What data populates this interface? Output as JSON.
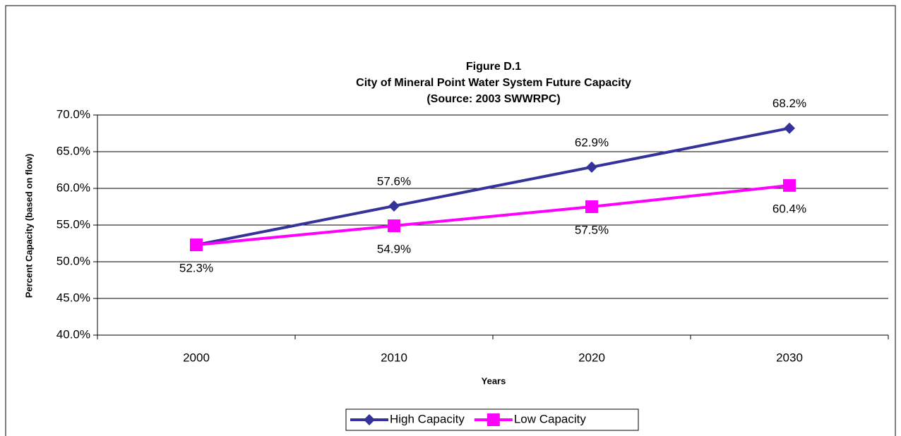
{
  "chart_data": {
    "type": "line",
    "title": "Figure D.1",
    "subtitle": "City of Mineral Point Water System Future Capacity",
    "source": "(Source:  2003 SWWRPC)",
    "y_label": "Percent Capacity (based on flow)",
    "x_label": "Years",
    "categories": [
      "2000",
      "2010",
      "2020",
      "2030"
    ],
    "series": [
      {
        "name": "High Capacity",
        "color": "#333399",
        "marker": "diamond",
        "values": [
          52.3,
          57.6,
          62.9,
          68.2
        ],
        "value_labels": [
          null,
          "57.6%",
          "62.9%",
          "68.2%"
        ]
      },
      {
        "name": "Low Capacity",
        "color": "#ff00ff",
        "marker": "square",
        "values": [
          52.3,
          54.9,
          57.5,
          60.4
        ],
        "value_labels": [
          "52.3%",
          "54.9%",
          "57.5%",
          "60.4%"
        ]
      }
    ],
    "ylim": [
      40,
      70
    ],
    "yticks": [
      {
        "value": 40,
        "label": "40.0%"
      },
      {
        "value": 45,
        "label": "45.0%"
      },
      {
        "value": 50,
        "label": "50.0%"
      },
      {
        "value": 55,
        "label": "55.0%"
      },
      {
        "value": 60,
        "label": "60.0%"
      },
      {
        "value": 65,
        "label": "65.0%"
      },
      {
        "value": 70,
        "label": "70.0%"
      }
    ],
    "grid": true,
    "legend": "bottom"
  }
}
